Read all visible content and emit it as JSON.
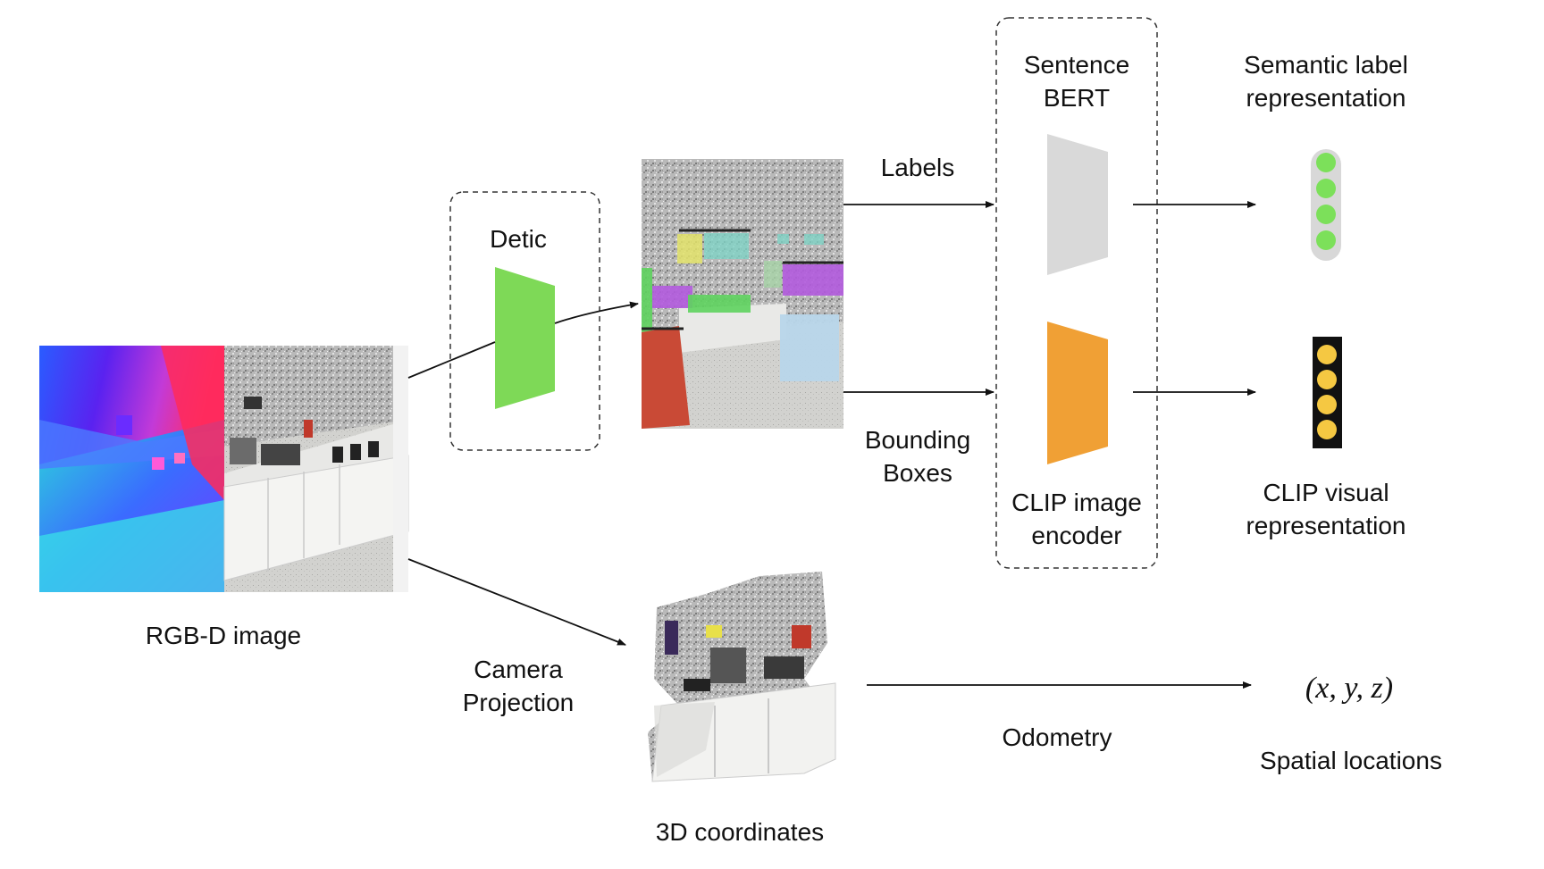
{
  "figure": {
    "rgbd_caption": "RGB-D image",
    "detic_label": "Detic",
    "sentence_bert_line1": "Sentence",
    "sentence_bert_line2": "BERT",
    "semantic_label_line1": "Semantic label",
    "semantic_label_line2": "representation",
    "labels_arrow": "Labels",
    "bounding_line1": "Bounding",
    "bounding_line2": "Boxes",
    "clip_encoder_line1": "CLIP image",
    "clip_encoder_line2": "encoder",
    "clip_visual_line1": "CLIP visual",
    "clip_visual_line2": "representation",
    "camera_line1": "Camera",
    "camera_line2": "Projection",
    "coords_caption": "3D coordinates",
    "odometry_label": "Odometry",
    "xyz_formula": "(x, y, z)",
    "spatial_caption": "Spatial locations"
  },
  "colors": {
    "detic_green": "#7ED957",
    "bert_gray": "#D9D9D9",
    "clip_orange": "#F0A035",
    "semantic_dot": "#7CE05A",
    "clip_dot": "#F5C842"
  }
}
